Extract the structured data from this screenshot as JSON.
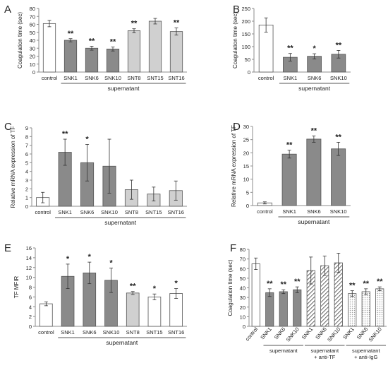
{
  "colors": {
    "white_bar": "#ffffff",
    "dark_bar": "#8a8a8a",
    "light_bar": "#d0d0d0",
    "hatch_bar": "#3a3a3a",
    "dot_bar": "#bdbdbd",
    "outline": "#555555"
  },
  "chart_data": [
    {
      "panel": "A",
      "type": "bar",
      "ylabel": "Coagulation time (sec)",
      "ylim": [
        0,
        80
      ],
      "ystep": 10,
      "categories": [
        "control",
        "SNK1",
        "SNK6",
        "SNK10",
        "SNT8",
        "SNT15",
        "SNT16"
      ],
      "values": [
        61,
        40,
        30,
        29,
        52,
        64,
        51
      ],
      "errors": [
        4,
        2,
        2.5,
        2.5,
        2.5,
        3.5,
        4.5
      ],
      "styles": [
        "white",
        "dark",
        "dark",
        "dark",
        "light",
        "light",
        "light"
      ],
      "stars": [
        "",
        "**",
        "**",
        "**",
        "**",
        "",
        "**"
      ],
      "groups": [
        {
          "label": "supernatant",
          "from": 1,
          "to": 6
        }
      ]
    },
    {
      "panel": "B",
      "type": "bar",
      "ylabel": "Coagulation time (sec)",
      "ylim": [
        0,
        250
      ],
      "ystep": 50,
      "categories": [
        "control",
        "SNK1",
        "SNK6",
        "SNK10"
      ],
      "values": [
        185,
        58,
        62,
        70
      ],
      "errors": [
        28,
        15,
        10,
        15
      ],
      "styles": [
        "white",
        "dark",
        "dark",
        "dark"
      ],
      "stars": [
        "",
        "**",
        "*",
        "**"
      ],
      "groups": [
        {
          "label": "supernatant",
          "from": 1,
          "to": 3
        }
      ]
    },
    {
      "panel": "C",
      "type": "bar",
      "ylabel": "Relative mRNA expression of TF",
      "ylim": [
        0,
        9
      ],
      "ystep": 1,
      "categories": [
        "control",
        "SNK1",
        "SNK6",
        "SNK10",
        "SNT8",
        "SNT15",
        "SNT16"
      ],
      "values": [
        1.0,
        6.2,
        5.0,
        4.6,
        1.9,
        1.4,
        1.8
      ],
      "errors": [
        0.6,
        1.5,
        2.1,
        3.1,
        1.1,
        0.8,
        1.1
      ],
      "styles": [
        "white",
        "dark",
        "dark",
        "dark",
        "light",
        "light",
        "light"
      ],
      "stars": [
        "",
        "**",
        "*",
        "",
        "",
        "",
        ""
      ],
      "groups": [
        {
          "label": "supernatant",
          "from": 1,
          "to": 6
        }
      ]
    },
    {
      "panel": "D",
      "type": "bar",
      "ylabel": "Relative mRNA expression of TF",
      "ylim": [
        0,
        30
      ],
      "ystep": 5,
      "categories": [
        "control",
        "SNK1",
        "SNK6",
        "SNK10"
      ],
      "values": [
        1.0,
        19.5,
        25.2,
        21.5
      ],
      "errors": [
        0.4,
        1.5,
        1.2,
        2.5
      ],
      "styles": [
        "white",
        "dark",
        "dark",
        "dark"
      ],
      "stars": [
        "",
        "**",
        "**",
        "**"
      ],
      "groups": [
        {
          "label": "supernatant",
          "from": 1,
          "to": 3
        }
      ]
    },
    {
      "panel": "E",
      "type": "bar",
      "ylabel": "TF MFIR",
      "ylim": [
        0,
        16
      ],
      "ystep": 2,
      "categories": [
        "control",
        "SNK1",
        "SNK6",
        "SNK10",
        "SNT8",
        "SNT15",
        "SNT16"
      ],
      "values": [
        4.6,
        10.2,
        10.9,
        9.4,
        6.8,
        6.0,
        6.7
      ],
      "errors": [
        0.4,
        2.5,
        2.2,
        2.5,
        0.3,
        0.6,
        1.0
      ],
      "styles": [
        "white",
        "dark",
        "dark",
        "dark",
        "light",
        "white",
        "white"
      ],
      "stars": [
        "",
        "*",
        "*",
        "*",
        "**",
        "*",
        "*"
      ],
      "groups": [
        {
          "label": "supernatant",
          "from": 1,
          "to": 6
        }
      ]
    },
    {
      "panel": "F",
      "type": "bar",
      "ylabel": "Coagulation time (sec)",
      "ylim": [
        0,
        80
      ],
      "ystep": 10,
      "rotated_labels": true,
      "categories": [
        "control",
        "SNK1",
        "SNK6",
        "SNK10",
        "SNK1",
        "SNK6",
        "SNK10",
        "SNK1",
        "SNK6",
        "SNK10"
      ],
      "values": [
        65,
        35,
        36,
        38,
        58,
        63,
        66,
        34,
        36,
        39
      ],
      "errors": [
        6,
        4,
        2,
        3,
        14,
        10,
        10,
        3,
        3,
        2
      ],
      "styles": [
        "white",
        "dark",
        "dark",
        "dark",
        "hatch",
        "hatch",
        "hatch",
        "dot",
        "dot",
        "dot"
      ],
      "stars": [
        "",
        "**",
        "**",
        "**",
        "",
        "",
        "",
        "**",
        "**",
        "**"
      ],
      "groups": [
        {
          "label": "supernatant",
          "from": 1,
          "to": 3
        },
        {
          "label": "supernatant\n+ anti-TF",
          "from": 4,
          "to": 6
        },
        {
          "label": "supernatant\n+ anti-IgG",
          "from": 7,
          "to": 9
        }
      ]
    }
  ]
}
